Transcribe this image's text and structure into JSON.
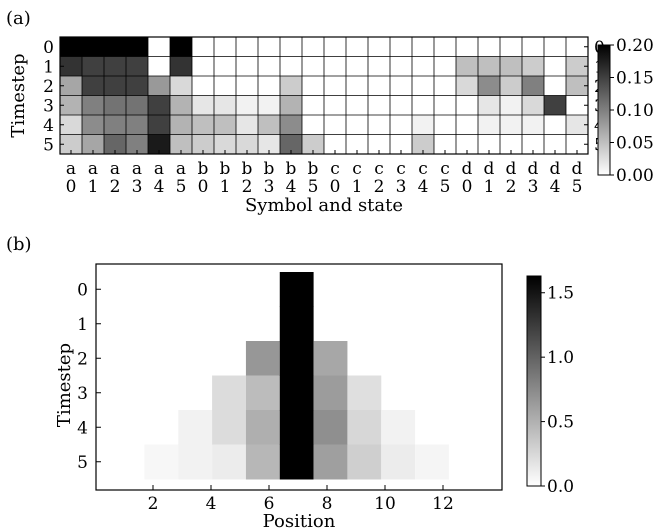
{
  "chart_data": [
    {
      "panel_label": "(a)",
      "type": "heatmap",
      "xlabel": "Symbol and state",
      "ylabel": "Timestep",
      "rows": [
        "0",
        "1",
        "2",
        "3",
        "4",
        "5"
      ],
      "row_ticks_right": [
        "0",
        "1",
        "2",
        "3",
        "4",
        "5"
      ],
      "column_symbols": [
        "a",
        "a",
        "a",
        "a",
        "a",
        "a",
        "b",
        "b",
        "b",
        "b",
        "b",
        "b",
        "c",
        "c",
        "c",
        "c",
        "c",
        "c",
        "d",
        "d",
        "d",
        "d",
        "d",
        "d"
      ],
      "column_states": [
        "0",
        "1",
        "2",
        "3",
        "4",
        "5",
        "0",
        "1",
        "2",
        "3",
        "4",
        "5",
        "0",
        "1",
        "2",
        "3",
        "4",
        "5",
        "0",
        "1",
        "2",
        "3",
        "4",
        "5"
      ],
      "values": [
        [
          0.2,
          0.2,
          0.2,
          0.2,
          0.0,
          0.2,
          0.0,
          0.0,
          0.0,
          0.0,
          0.0,
          0.0,
          0.0,
          0.0,
          0.0,
          0.0,
          0.0,
          0.0,
          0.0,
          0.0,
          0.0,
          0.0,
          0.0,
          0.0
        ],
        [
          0.16,
          0.15,
          0.15,
          0.15,
          0.0,
          0.16,
          0.0,
          0.0,
          0.0,
          0.0,
          0.0,
          0.0,
          0.0,
          0.0,
          0.0,
          0.0,
          0.0,
          0.0,
          0.05,
          0.05,
          0.05,
          0.04,
          0.0,
          0.04
        ],
        [
          0.07,
          0.15,
          0.15,
          0.15,
          0.08,
          0.03,
          0.0,
          0.0,
          0.0,
          0.0,
          0.04,
          0.0,
          0.0,
          0.0,
          0.0,
          0.0,
          0.0,
          0.0,
          0.03,
          0.09,
          0.04,
          0.1,
          0.0,
          0.05
        ],
        [
          0.06,
          0.1,
          0.11,
          0.11,
          0.15,
          0.06,
          0.02,
          0.02,
          0.01,
          0.01,
          0.06,
          0.0,
          0.0,
          0.0,
          0.0,
          0.0,
          0.0,
          0.0,
          0.0,
          0.02,
          0.01,
          0.03,
          0.15,
          0.0
        ],
        [
          0.03,
          0.09,
          0.1,
          0.1,
          0.15,
          0.06,
          0.05,
          0.05,
          0.02,
          0.05,
          0.09,
          0.0,
          0.0,
          0.0,
          0.0,
          0.0,
          0.01,
          0.0,
          0.0,
          0.01,
          0.01,
          0.01,
          0.0,
          0.02
        ],
        [
          0.04,
          0.07,
          0.12,
          0.1,
          0.18,
          0.05,
          0.04,
          0.03,
          0.03,
          0.02,
          0.12,
          0.04,
          0.0,
          0.0,
          0.0,
          0.0,
          0.04,
          0.0,
          0.0,
          0.0,
          0.0,
          0.0,
          0.0,
          0.0
        ]
      ],
      "colorbar": {
        "min": 0.0,
        "max": 0.2,
        "ticks": [
          "0.00",
          "0.05",
          "0.10",
          "0.15",
          "0.20"
        ],
        "tick_values": [
          0.0,
          0.05,
          0.1,
          0.15,
          0.2
        ]
      },
      "colormap": "white-to-black"
    },
    {
      "panel_label": "(b)",
      "type": "heatmap",
      "xlabel": "Position",
      "ylabel": "Timestep",
      "rows": [
        "0",
        "1",
        "2",
        "3",
        "4",
        "5"
      ],
      "xlim": [
        0,
        14
      ],
      "xticks": [
        "2",
        "4",
        "6",
        "8",
        "10",
        "12"
      ],
      "xtick_values": [
        2,
        4,
        6,
        8,
        10,
        12
      ],
      "cells": [
        {
          "row": 0,
          "x": 6,
          "value": 1.6
        },
        {
          "row": 1,
          "x": 6,
          "value": 1.6
        },
        {
          "row": 2,
          "x": 5,
          "value": 0.65
        },
        {
          "row": 2,
          "x": 6,
          "value": 1.6
        },
        {
          "row": 2,
          "x": 7,
          "value": 0.55
        },
        {
          "row": 3,
          "x": 4,
          "value": 0.22
        },
        {
          "row": 3,
          "x": 5,
          "value": 0.42
        },
        {
          "row": 3,
          "x": 6,
          "value": 1.6
        },
        {
          "row": 3,
          "x": 7,
          "value": 0.62
        },
        {
          "row": 3,
          "x": 8,
          "value": 0.2
        },
        {
          "row": 4,
          "x": 3,
          "value": 0.08
        },
        {
          "row": 4,
          "x": 4,
          "value": 0.22
        },
        {
          "row": 4,
          "x": 5,
          "value": 0.5
        },
        {
          "row": 4,
          "x": 6,
          "value": 1.6
        },
        {
          "row": 4,
          "x": 7,
          "value": 0.7
        },
        {
          "row": 4,
          "x": 8,
          "value": 0.25
        },
        {
          "row": 4,
          "x": 9,
          "value": 0.08
        },
        {
          "row": 5,
          "x": 2,
          "value": 0.05
        },
        {
          "row": 5,
          "x": 3,
          "value": 0.08
        },
        {
          "row": 5,
          "x": 4,
          "value": 0.12
        },
        {
          "row": 5,
          "x": 5,
          "value": 0.45
        },
        {
          "row": 5,
          "x": 6,
          "value": 1.6
        },
        {
          "row": 5,
          "x": 7,
          "value": 0.6
        },
        {
          "row": 5,
          "x": 8,
          "value": 0.3
        },
        {
          "row": 5,
          "x": 9,
          "value": 0.12
        },
        {
          "row": 5,
          "x": 10,
          "value": 0.06
        }
      ],
      "colorbar": {
        "min": 0.0,
        "max": 1.6,
        "ticks": [
          "0.0",
          "0.5",
          "1.0",
          "1.5"
        ],
        "tick_values": [
          0.0,
          0.5,
          1.0,
          1.5
        ]
      },
      "colormap": "white-to-black"
    }
  ]
}
